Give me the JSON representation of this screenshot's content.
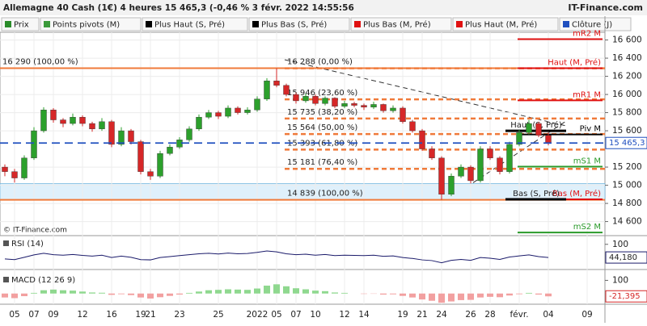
{
  "header": {
    "title": "Allemagne 40 Cash (1€) 4 heures 15 465,3 (-0,46 % 3 févr. 2022 14:55:56",
    "brand": "IT-Finance.com"
  },
  "legend": [
    {
      "name": "Prix",
      "color": "#2a8c2a"
    },
    {
      "name": "Points pivots (M)",
      "color": "#3a9a3a"
    },
    {
      "name": "Plus Haut (S, Pré)",
      "color": "#000000"
    },
    {
      "name": "Plus Bas (S, Pré)",
      "color": "#000000"
    },
    {
      "name": "Plus Bas (M, Pré)",
      "color": "#e01010"
    },
    {
      "name": "Plus Haut (M, Pré)",
      "color": "#e01010"
    },
    {
      "name": "Clôture (J)",
      "color": "#1f4fbf"
    }
  ],
  "chart_data": {
    "type": "candlestick",
    "copyright": "© IT-Finance.com",
    "categories": [
      null,
      "05",
      null,
      "07",
      null,
      "09",
      null,
      null,
      "12",
      null,
      null,
      "16",
      null,
      null,
      "19",
      "21",
      null,
      null,
      "23",
      null,
      null,
      null,
      "25",
      null,
      null,
      null,
      "2022",
      null,
      "05",
      null,
      "07",
      null,
      "10",
      null,
      null,
      "12",
      null,
      "14",
      null,
      null,
      null,
      "19",
      null,
      "21",
      null,
      "24",
      null,
      null,
      "26",
      null,
      "28",
      null,
      null,
      "févr.",
      null,
      null,
      "04",
      null,
      null,
      null,
      "09"
    ],
    "candles": [
      [
        15200,
        15230,
        15100,
        15150
      ],
      [
        15150,
        15180,
        15030,
        15080
      ],
      [
        15080,
        15330,
        15060,
        15300
      ],
      [
        15300,
        15640,
        15280,
        15600
      ],
      [
        15600,
        15860,
        15580,
        15830
      ],
      [
        15830,
        15850,
        15690,
        15720
      ],
      [
        15720,
        15740,
        15640,
        15680
      ],
      [
        15680,
        15790,
        15660,
        15750
      ],
      [
        15750,
        15770,
        15650,
        15680
      ],
      [
        15680,
        15700,
        15590,
        15620
      ],
      [
        15620,
        15740,
        15600,
        15700
      ],
      [
        15700,
        15720,
        15420,
        15450
      ],
      [
        15450,
        15640,
        15430,
        15600
      ],
      [
        15600,
        15620,
        15450,
        15480
      ],
      [
        15480,
        15500,
        15120,
        15150
      ],
      [
        15150,
        15180,
        15060,
        15100
      ],
      [
        15100,
        15380,
        15080,
        15350
      ],
      [
        15350,
        15450,
        15330,
        15420
      ],
      [
        15420,
        15530,
        15400,
        15500
      ],
      [
        15500,
        15650,
        15480,
        15620
      ],
      [
        15620,
        15780,
        15600,
        15750
      ],
      [
        15750,
        15830,
        15730,
        15800
      ],
      [
        15800,
        15820,
        15730,
        15760
      ],
      [
        15760,
        15880,
        15740,
        15850
      ],
      [
        15850,
        15870,
        15780,
        15800
      ],
      [
        15800,
        15860,
        15780,
        15830
      ],
      [
        15830,
        15980,
        15810,
        15950
      ],
      [
        15950,
        16180,
        15930,
        16150
      ],
      [
        16150,
        16288,
        16080,
        16100
      ],
      [
        16100,
        16120,
        15980,
        16000
      ],
      [
        16000,
        16020,
        15900,
        15930
      ],
      [
        15930,
        16010,
        15910,
        15980
      ],
      [
        15980,
        16000,
        15880,
        15900
      ],
      [
        15900,
        15980,
        15880,
        15960
      ],
      [
        15960,
        15970,
        15850,
        15870
      ],
      [
        15870,
        15930,
        15850,
        15900
      ],
      [
        15900,
        15920,
        15860,
        15880
      ],
      [
        15880,
        15900,
        15830,
        15860
      ],
      [
        15860,
        15920,
        15840,
        15890
      ],
      [
        15890,
        15900,
        15800,
        15820
      ],
      [
        15820,
        15880,
        15800,
        15850
      ],
      [
        15850,
        15870,
        15680,
        15700
      ],
      [
        15700,
        15720,
        15580,
        15600
      ],
      [
        15600,
        15620,
        15380,
        15400
      ],
      [
        15400,
        15430,
        15280,
        15300
      ],
      [
        15300,
        15320,
        14839,
        14900
      ],
      [
        14900,
        15130,
        14880,
        15100
      ],
      [
        15100,
        15230,
        15080,
        15200
      ],
      [
        15200,
        15220,
        15020,
        15050
      ],
      [
        15050,
        15430,
        15030,
        15400
      ],
      [
        15400,
        15430,
        15280,
        15300
      ],
      [
        15300,
        15320,
        15120,
        15150
      ],
      [
        15150,
        15480,
        15130,
        15450
      ],
      [
        15450,
        15610,
        15430,
        15580
      ],
      [
        15580,
        15720,
        15560,
        15680
      ],
      [
        15680,
        15700,
        15530,
        15550
      ],
      [
        15550,
        15580,
        15440,
        15465.3
      ],
      null,
      null,
      null,
      null
    ],
    "up_color": "#2ca02c",
    "down_color": "#d62728",
    "ylim": [
      14445,
      16685
    ],
    "yticks": [
      {
        "value": 16600,
        "label": "16 600"
      },
      {
        "value": 16400,
        "label": "16 400"
      },
      {
        "value": 16200,
        "label": "16 200"
      },
      {
        "value": 16000,
        "label": "16 000"
      },
      {
        "value": 15800,
        "label": "15 800"
      },
      {
        "value": 15600,
        "label": "15 600"
      },
      {
        "value": 15200,
        "label": "15 200"
      },
      {
        "value": 15000,
        "label": "15 000"
      },
      {
        "value": 14800,
        "label": "14 800"
      },
      {
        "value": 14600,
        "label": "14 600"
      }
    ],
    "close": {
      "value": 15465.3,
      "label": "15 465,3",
      "color": "#1f4fbf"
    },
    "zone": {
      "ylim": [
        14839,
        15020
      ],
      "color": "#dff0fb"
    },
    "fibonacci": [
      {
        "value": 16290,
        "label": "16 290 (100,00 %)",
        "style": "solid"
      },
      {
        "value": 16288,
        "label": "16 288 (0,00 %)",
        "style": "dashed"
      },
      {
        "value": 15946,
        "label": "15 946 (23,60 %)",
        "style": "dashed"
      },
      {
        "value": 15735,
        "label": "15 735 (38,20 %)",
        "style": "dashed"
      },
      {
        "value": 15564,
        "label": "15 564 (50,00 %)",
        "style": "dashed"
      },
      {
        "value": 15393,
        "label": "15 393 (61,80 %)",
        "style": "dashed"
      },
      {
        "value": 15181,
        "label": "15 181 (76,40 %)",
        "style": "dashed"
      },
      {
        "value": 14839,
        "label": "14 839 (100,00 %)",
        "style": "solid"
      }
    ],
    "fib_color": "#f07a3a",
    "pivots": [
      {
        "label": "mR2 M",
        "value": 16610,
        "color": "#e01010"
      },
      {
        "label": "Haut (M, Pré)",
        "value": 16290,
        "color": "#e01010"
      },
      {
        "label": "mR1 M",
        "value": 15935,
        "color": "#e01010"
      },
      {
        "label": "Piv M",
        "value": 15560,
        "color": "#000000"
      },
      {
        "label": "mS1 M",
        "value": 15205,
        "color": "#2a9a2a"
      },
      {
        "label": "Bas (M, Pré)",
        "value": 14845,
        "color": "#e01010"
      },
      {
        "label": "mS2 M",
        "value": 14480,
        "color": "#2a9a2a"
      }
    ],
    "previous_week": [
      {
        "label": "Haut (S, Pré)",
        "value": 15600
      },
      {
        "label": "Bas (S, Pré)",
        "value": 14845
      }
    ],
    "rsi": {
      "title": "RSI (14)",
      "ylim": [
        0,
        130
      ],
      "yticks": [
        100
      ],
      "last_label": "44,180",
      "color": "#1a1a6a",
      "values": [
        38,
        35,
        45,
        55,
        62,
        56,
        54,
        57,
        53,
        50,
        54,
        44,
        50,
        45,
        35,
        34,
        44,
        48,
        52,
        56,
        60,
        62,
        59,
        63,
        60,
        61,
        66,
        72,
        68,
        60,
        56,
        58,
        54,
        57,
        52,
        54,
        53,
        52,
        54,
        49,
        51,
        44,
        40,
        34,
        31,
        22,
        32,
        36,
        32,
        44,
        41,
        36,
        46,
        51,
        55,
        48,
        44.18,
        null,
        null,
        null,
        null
      ]
    },
    "macd": {
      "title": "MACD (12 26 9)",
      "ylim": [
        -75,
        170
      ],
      "yticks": [
        100
      ],
      "last_label": "-21,395",
      "values": [
        -30,
        -35,
        -20,
        5,
        25,
        30,
        25,
        22,
        15,
        8,
        6,
        -10,
        -5,
        -12,
        -30,
        -38,
        -28,
        -18,
        -8,
        5,
        15,
        25,
        28,
        32,
        30,
        28,
        38,
        60,
        70,
        55,
        40,
        32,
        22,
        18,
        8,
        5,
        0,
        -3,
        -2,
        -8,
        -6,
        -18,
        -30,
        -45,
        -55,
        -70,
        -60,
        -50,
        -48,
        -30,
        -25,
        -28,
        -15,
        -5,
        5,
        -8,
        -21.395,
        null,
        null,
        null,
        null
      ]
    }
  }
}
